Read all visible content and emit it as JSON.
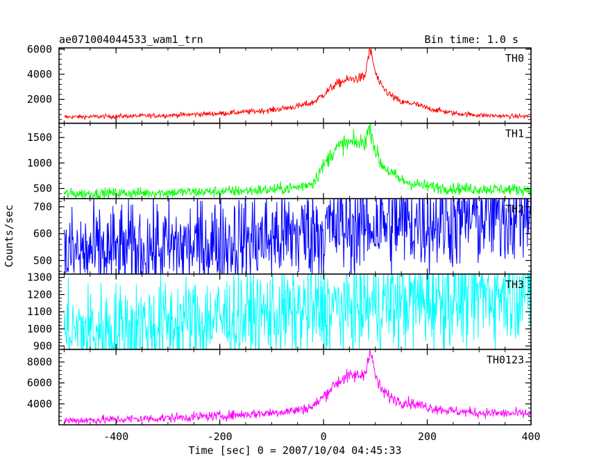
{
  "chart_data": {
    "type": "line",
    "title": "ae071004044533_wam1_trn",
    "bin_label": "Bin time: 1.0 s",
    "xlabel": "Time [sec] 0 = 2007/10/04 04:45:33",
    "ylabel": "Counts/sec",
    "xlim": [
      -510,
      400
    ],
    "x_ticks": [
      -400,
      -200,
      0,
      200,
      400
    ],
    "panels": [
      {
        "name": "TH0",
        "color": "#ff0000",
        "ylim": [
          100,
          6100
        ],
        "y_ticks": [
          2000,
          4000,
          6000
        ],
        "x": [
          -500,
          -400,
          -300,
          -200,
          -150,
          -100,
          -50,
          -20,
          0,
          20,
          40,
          60,
          70,
          80,
          85,
          90,
          95,
          100,
          110,
          130,
          150,
          170,
          200,
          250,
          300,
          350,
          400
        ],
        "values": [
          600,
          650,
          730,
          880,
          1000,
          1150,
          1450,
          1750,
          2400,
          3100,
          3500,
          3650,
          3700,
          3800,
          5200,
          5900,
          5100,
          4100,
          3100,
          2300,
          1750,
          1700,
          1300,
          900,
          750,
          670,
          640
        ],
        "noise": 30
      },
      {
        "name": "TH1",
        "color": "#00ff00",
        "ylim": [
          300,
          1780
        ],
        "y_ticks": [
          500,
          1000,
          1500
        ],
        "x": [
          -500,
          -400,
          -300,
          -200,
          -150,
          -100,
          -50,
          -20,
          0,
          20,
          40,
          60,
          70,
          80,
          85,
          90,
          95,
          100,
          110,
          130,
          150,
          170,
          200,
          250,
          300,
          350,
          400
        ],
        "values": [
          395,
          405,
          420,
          440,
          455,
          475,
          520,
          620,
          950,
          1250,
          1380,
          1400,
          1390,
          1420,
          1600,
          1700,
          1500,
          1250,
          1000,
          800,
          660,
          600,
          540,
          500,
          490,
          480,
          480
        ],
        "noise": 22
      },
      {
        "name": "TH2",
        "color": "#0000ff",
        "ylim": [
          450,
          730
        ],
        "y_ticks": [
          500,
          600,
          700
        ],
        "x": [
          -500,
          -400,
          -300,
          -200,
          -100,
          0,
          100,
          200,
          300,
          400
        ],
        "values": [
          525,
          535,
          550,
          565,
          585,
          615,
          635,
          645,
          660,
          690
        ],
        "noise": 32
      },
      {
        "name": "TH3",
        "color": "#00ffff",
        "ylim": [
          880,
          1320
        ],
        "y_ticks": [
          900,
          1000,
          1100,
          1200,
          1300
        ],
        "x": [
          -500,
          -400,
          -300,
          -200,
          -100,
          0,
          100,
          200,
          300,
          400
        ],
        "values": [
          985,
          1000,
          1030,
          1055,
          1085,
          1110,
          1140,
          1165,
          1200,
          1235
        ],
        "noise": 38
      },
      {
        "name": "TH0123",
        "color": "#ff00ff",
        "ylim": [
          2000,
          9200
        ],
        "y_ticks": [
          4000,
          6000,
          8000
        ],
        "x": [
          -500,
          -400,
          -300,
          -200,
          -150,
          -100,
          -50,
          -20,
          0,
          20,
          40,
          60,
          70,
          80,
          85,
          90,
          95,
          100,
          110,
          130,
          150,
          170,
          200,
          250,
          300,
          350,
          400
        ],
        "values": [
          2400,
          2500,
          2650,
          2850,
          3000,
          3150,
          3400,
          3750,
          4700,
          5800,
          6500,
          6700,
          6700,
          6900,
          8300,
          8900,
          8000,
          6700,
          5400,
          4600,
          4200,
          4050,
          3700,
          3300,
          3150,
          3080,
          3050
        ],
        "noise": 40
      }
    ]
  }
}
